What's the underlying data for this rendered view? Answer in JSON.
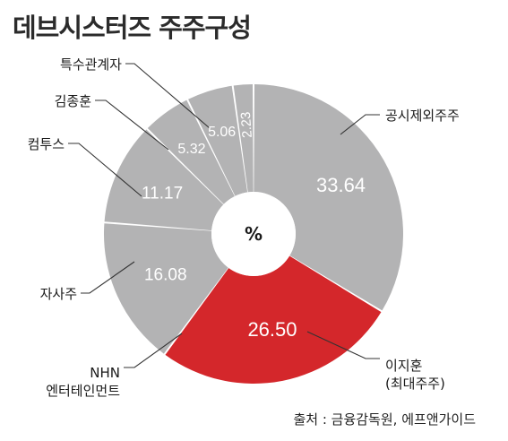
{
  "chart_data": {
    "type": "pie",
    "variant": "donut",
    "title": "데브시스터즈 주주구성",
    "center_label": "%",
    "slices": [
      {
        "label": "공시제외주주",
        "value": 33.64,
        "value_text": "33.64",
        "color": "#b3b3b4"
      },
      {
        "label": "이지훈",
        "sublabel": "(최대주주)",
        "value": 26.5,
        "value_text": "26.50",
        "color": "#d4272b"
      },
      {
        "label": "NHN",
        "sublabel": "엔터테인먼트",
        "value": 16.08,
        "value_text": "16.08",
        "color": "#b3b3b4"
      },
      {
        "label": "자사주",
        "value": 11.17,
        "value_text": "11.17",
        "color": "#b3b3b4"
      },
      {
        "label": "컴투스",
        "value": 5.32,
        "value_text": "5.32",
        "color": "#b3b3b4"
      },
      {
        "label": "김종훈",
        "value": 5.06,
        "value_text": "5.06",
        "color": "#b3b3b4"
      },
      {
        "label": "특수관계자",
        "value": 2.23,
        "value_text": "2.23",
        "color": "#b3b3b4"
      }
    ]
  },
  "source": "출처 : 금융감독원, 에프앤가이드"
}
